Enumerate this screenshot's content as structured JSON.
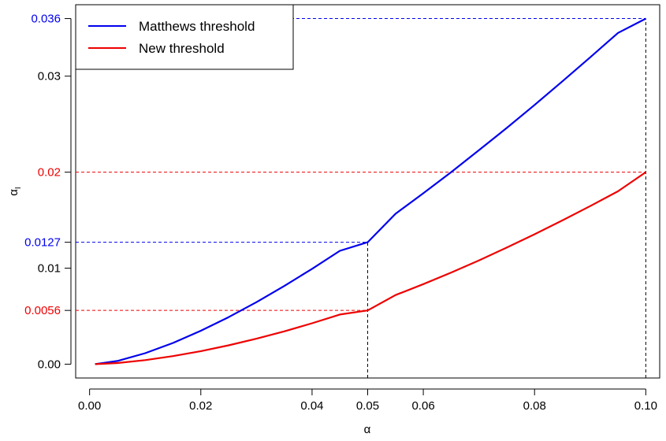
{
  "chart_data": {
    "type": "line",
    "title": "",
    "xlabel": "α",
    "ylabel": "α",
    "ylabel_subscript": "I",
    "xlim": [
      -0.0025,
      0.1025
    ],
    "ylim": [
      -0.00144,
      0.03744
    ],
    "x_ticks": [
      {
        "value": 0.0,
        "label": "0.00"
      },
      {
        "value": 0.02,
        "label": "0.02"
      },
      {
        "value": 0.04,
        "label": "0.04"
      },
      {
        "value": 0.05,
        "label": "0.05"
      },
      {
        "value": 0.06,
        "label": "0.06"
      },
      {
        "value": 0.08,
        "label": "0.08"
      },
      {
        "value": 0.1,
        "label": "0.10"
      }
    ],
    "y_ticks": [
      {
        "value": 0.0,
        "label": "0.00",
        "color": "#000000"
      },
      {
        "value": 0.0056,
        "label": "0.0056",
        "color": "#ee0000"
      },
      {
        "value": 0.01,
        "label": "0.01",
        "color": "#000000"
      },
      {
        "value": 0.0127,
        "label": "0.0127",
        "color": "#0000ee"
      },
      {
        "value": 0.02,
        "label": "0.02",
        "color": "#ee0000"
      },
      {
        "value": 0.03,
        "label": "0.03",
        "color": "#000000"
      },
      {
        "value": 0.036,
        "label": "0.036",
        "color": "#0000ee"
      }
    ],
    "series": [
      {
        "name": "Matthews threshold",
        "color": "#0000ee",
        "x": [
          0.001,
          0.005,
          0.01,
          0.015,
          0.02,
          0.025,
          0.03,
          0.035,
          0.04,
          0.045,
          0.05,
          0.055,
          0.06,
          0.065,
          0.07,
          0.075,
          0.08,
          0.085,
          0.09,
          0.095,
          0.1
        ],
        "y": [
          0.0,
          0.00033,
          0.00114,
          0.00221,
          0.00348,
          0.0049,
          0.00646,
          0.00814,
          0.00993,
          0.01181,
          0.0127,
          0.01566,
          0.0178,
          0.02,
          0.02228,
          0.0246,
          0.027,
          0.02946,
          0.03196,
          0.0345,
          0.036
        ]
      },
      {
        "name": "New threshold",
        "color": "#ee0000",
        "x": [
          0.001,
          0.005,
          0.01,
          0.015,
          0.02,
          0.025,
          0.03,
          0.035,
          0.04,
          0.045,
          0.05,
          0.055,
          0.06,
          0.065,
          0.07,
          0.075,
          0.08,
          0.085,
          0.09,
          0.095,
          0.1
        ],
        "y": [
          0.0,
          0.00012,
          0.00042,
          0.00084,
          0.00136,
          0.00196,
          0.00265,
          0.00342,
          0.00426,
          0.00517,
          0.0056,
          0.0072,
          0.00834,
          0.00954,
          0.01081,
          0.01214,
          0.01353,
          0.01497,
          0.01647,
          0.01801,
          0.02
        ]
      }
    ],
    "reference_lines": [
      {
        "type": "h",
        "y": 0.036,
        "x_to": 0.1,
        "color": "#0000ee"
      },
      {
        "type": "h",
        "y": 0.02,
        "x_to": 0.1,
        "color": "#ee0000"
      },
      {
        "type": "h",
        "y": 0.0127,
        "x_to": 0.05,
        "color": "#0000ee"
      },
      {
        "type": "h",
        "y": 0.0056,
        "x_to": 0.05,
        "color": "#ee0000"
      },
      {
        "type": "v",
        "x": 0.05,
        "y_to": 0.0127,
        "color": "#000000"
      },
      {
        "type": "v",
        "x": 0.1,
        "y_to": 0.036,
        "color": "#000000"
      }
    ],
    "legend": {
      "position": "top-left",
      "entries": [
        {
          "label": "Matthews threshold",
          "color": "#0000ee"
        },
        {
          "label": "New threshold",
          "color": "#ee0000"
        }
      ]
    },
    "grid": false
  }
}
